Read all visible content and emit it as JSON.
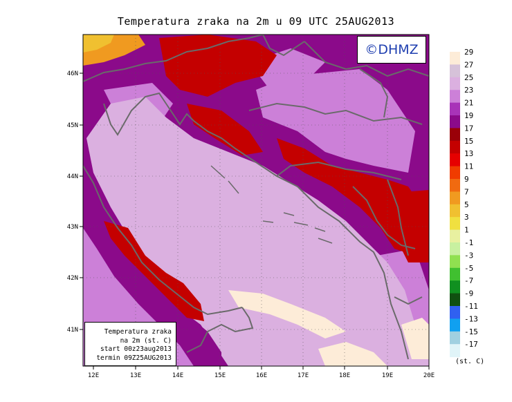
{
  "title": "Temperatura zraka na 2m u 09 UTC 25AUG2013",
  "logo_text": "©DHMZ",
  "info_box": {
    "line1": "Temperatura zraka",
    "line2": "na 2m (st. C)",
    "line3": "start 00z23aug2013",
    "line4": "termin 09Z25AUG2013"
  },
  "legend": {
    "unit": "(st. C)",
    "labels": [
      "29",
      "27",
      "25",
      "23",
      "21",
      "19",
      "17",
      "15",
      "13",
      "11",
      "9",
      "7",
      "5",
      "3",
      "1",
      "-1",
      "-3",
      "-5",
      "-7",
      "-9",
      "-11",
      "-13",
      "-15",
      "-17"
    ],
    "colors": [
      "#fdecd8",
      "#d6c2d9",
      "#dbb0e0",
      "#cc80d8",
      "#a833b8",
      "#8b0a8a",
      "#9a0008",
      "#c40000",
      "#e60000",
      "#f03c00",
      "#f06a10",
      "#f09a20",
      "#f0c030",
      "#f0e040",
      "#e8f0a0",
      "#c8f0a0",
      "#90e050",
      "#40c030",
      "#109020",
      "#105010",
      "#3060f0",
      "#10a0f0",
      "#a0d0e0",
      "#e0f4f8"
    ]
  },
  "axes": {
    "lon_labels": [
      "12E",
      "13E",
      "14E",
      "15E",
      "16E",
      "17E",
      "18E",
      "19E",
      "20E"
    ],
    "lat_labels": [
      "46N",
      "45N",
      "44N",
      "43N",
      "42N",
      "41N"
    ]
  },
  "map_regions": {
    "background": "#8b0a8a",
    "sea_warm": "#dbb0e0",
    "sea_hot": "#fdecd8",
    "land_inland_warm": "#cc80d8",
    "hot_red": "#c40000",
    "hot_orange": "#f09a20"
  }
}
